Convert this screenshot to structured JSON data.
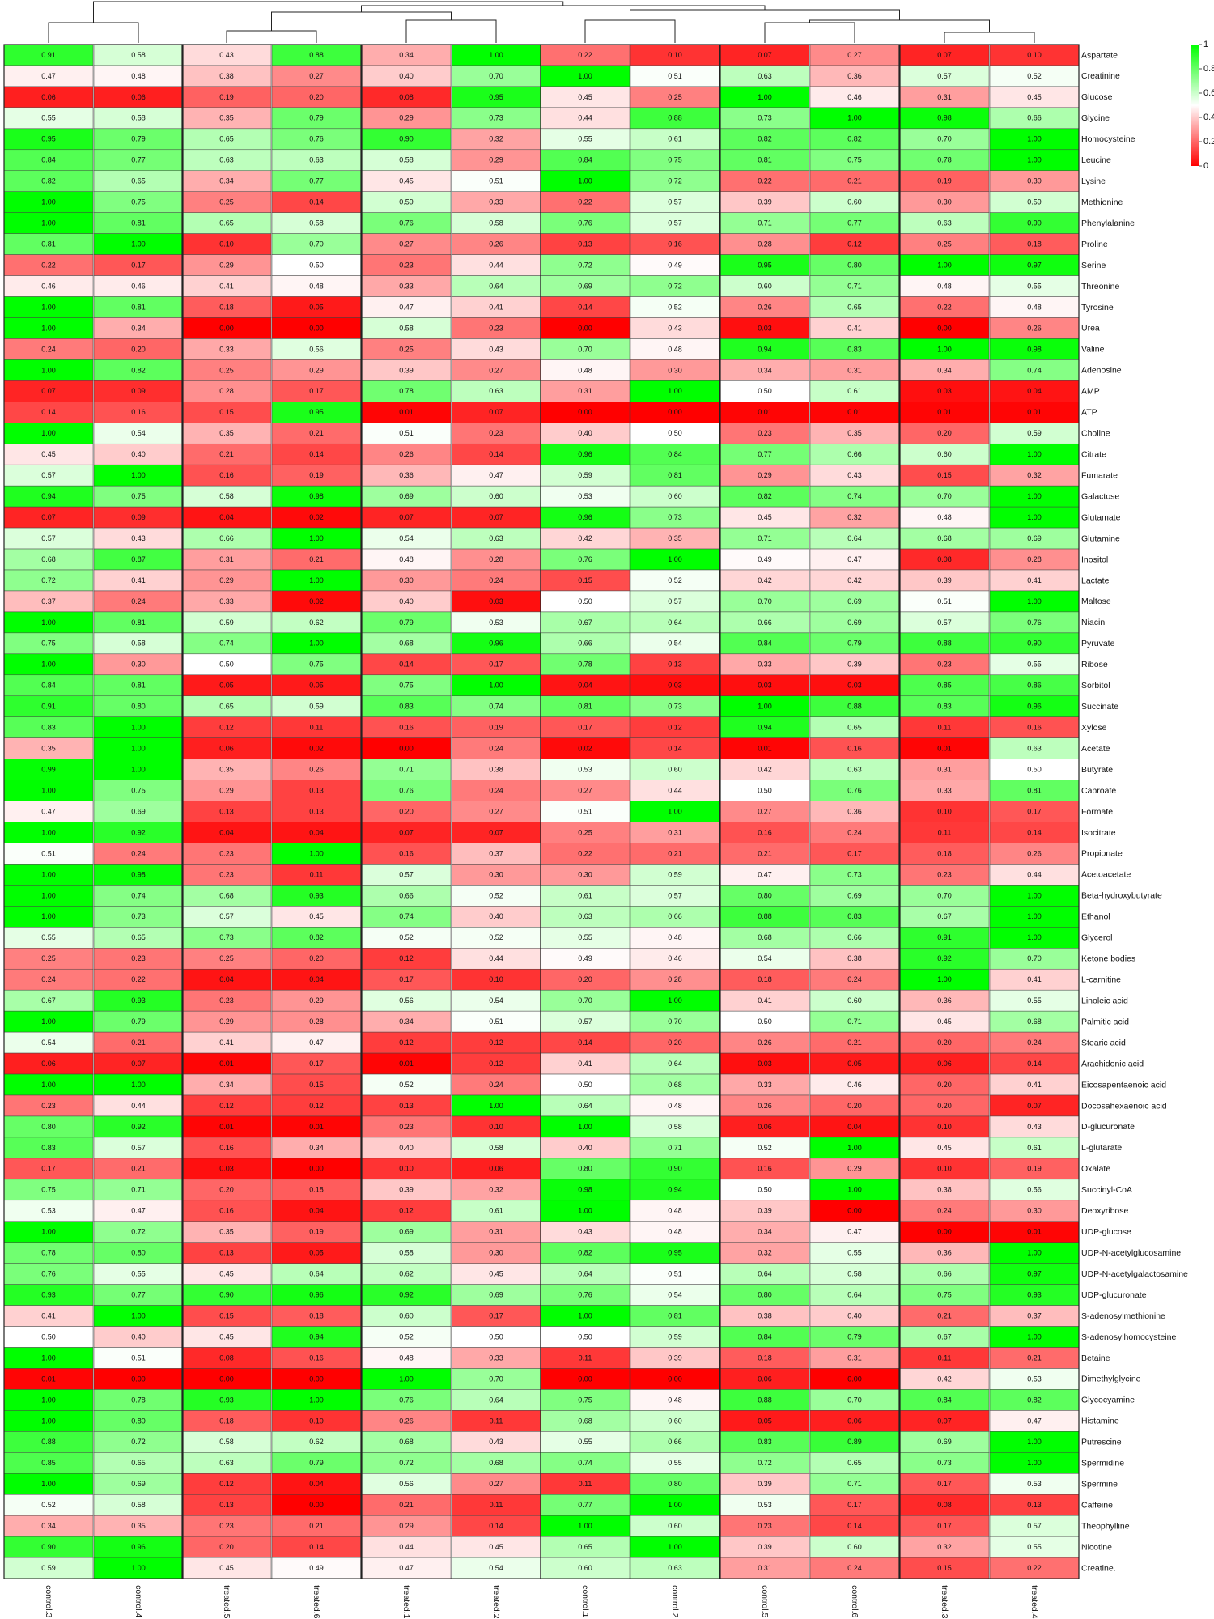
{
  "chart_data": {
    "type": "heatmap",
    "title": "",
    "columns": [
      "control.3",
      "control.4",
      "treated.5",
      "treated.6",
      "treated.1",
      "treated.2",
      "control.1",
      "control.2",
      "control.5",
      "control.6",
      "treated.3",
      "treated.4"
    ],
    "rows": [
      "Aspartate",
      "Creatinine",
      "Glucose",
      "Glycine",
      "Homocysteine",
      "Leucine",
      "Lysine",
      "Methionine",
      "Phenylalanine",
      "Proline",
      "Serine",
      "Threonine",
      "Tyrosine",
      "Urea",
      "Valine",
      "Adenosine",
      "AMP",
      "ATP",
      "Choline",
      "Citrate",
      "Fumarate",
      "Galactose",
      "Glutamate",
      "Glutamine",
      "Inositol",
      "Lactate",
      "Maltose",
      "Niacin",
      "Pyruvate",
      "Ribose",
      "Sorbitol",
      "Succinate",
      "Xylose",
      "Acetate",
      "Butyrate",
      "Caproate",
      "Formate",
      "Isocitrate",
      "Propionate",
      "Acetoacetate",
      "Beta-hydroxybutyrate",
      "Ethanol",
      "Glycerol",
      "Ketone bodies",
      "L-carnitine",
      "Linoleic acid",
      "Palmitic acid",
      "Stearic acid",
      "Arachidonic acid",
      "Eicosapentaenoic acid",
      "Docosahexaenoic acid",
      "D-glucuronate",
      "L-glutarate",
      "Oxalate",
      "Succinyl-CoA",
      "Deoxyribose",
      "UDP-glucose",
      "UDP-N-acetylglucosamine",
      "UDP-N-acetylgalactosamine",
      "UDP-glucuronate",
      "S-adenosylmethionine",
      "S-adenosylhomocysteine",
      "Betaine",
      "Dimethylglycine",
      "Glycocyamine",
      "Histamine",
      "Putrescine",
      "Spermidine",
      "Spermine",
      "Caffeine",
      "Theophylline",
      "Nicotine",
      "Creatine."
    ],
    "values": [
      [
        0.91,
        0.58,
        0.43,
        0.88,
        0.34,
        1.0,
        0.22,
        0.1,
        0.07,
        0.27,
        0.07,
        0.1
      ],
      [
        0.47,
        0.48,
        0.38,
        0.27,
        0.4,
        0.7,
        1.0,
        0.51,
        0.63,
        0.36,
        0.57,
        0.52
      ],
      [
        0.06,
        0.06,
        0.19,
        0.2,
        0.08,
        0.95,
        0.45,
        0.25,
        1.0,
        0.46,
        0.31,
        0.45
      ],
      [
        0.55,
        0.58,
        0.35,
        0.79,
        0.29,
        0.73,
        0.44,
        0.88,
        0.73,
        1.0,
        0.98,
        0.66
      ],
      [
        0.95,
        0.79,
        0.65,
        0.76,
        0.9,
        0.32,
        0.55,
        0.61,
        0.82,
        0.82,
        0.7,
        1.0
      ],
      [
        0.84,
        0.77,
        0.63,
        0.63,
        0.58,
        0.29,
        0.84,
        0.75,
        0.81,
        0.75,
        0.78,
        1.0
      ],
      [
        0.82,
        0.65,
        0.34,
        0.77,
        0.45,
        0.51,
        1.0,
        0.72,
        0.22,
        0.21,
        0.19,
        0.3
      ],
      [
        1.0,
        0.75,
        0.25,
        0.14,
        0.59,
        0.33,
        0.22,
        0.57,
        0.39,
        0.6,
        0.3,
        0.59
      ],
      [
        1.0,
        0.81,
        0.65,
        0.58,
        0.76,
        0.58,
        0.76,
        0.57,
        0.71,
        0.77,
        0.63,
        0.9
      ],
      [
        0.81,
        1.0,
        0.1,
        0.7,
        0.27,
        0.26,
        0.13,
        0.16,
        0.28,
        0.12,
        0.25,
        0.18
      ],
      [
        0.22,
        0.17,
        0.29,
        0.5,
        0.23,
        0.44,
        0.72,
        0.49,
        0.95,
        0.8,
        1.0,
        0.97
      ],
      [
        0.46,
        0.46,
        0.41,
        0.48,
        0.33,
        0.64,
        0.69,
        0.72,
        0.6,
        0.71,
        0.48,
        0.55
      ],
      [
        1.0,
        0.81,
        0.18,
        0.05,
        0.47,
        0.41,
        0.14,
        0.52,
        0.26,
        0.65,
        0.22,
        0.48
      ],
      [
        1.0,
        0.34,
        0.0,
        0.0,
        0.58,
        0.23,
        0.0,
        0.43,
        0.03,
        0.41,
        0.0,
        0.26
      ],
      [
        0.24,
        0.2,
        0.33,
        0.56,
        0.25,
        0.43,
        0.7,
        0.48,
        0.94,
        0.83,
        1.0,
        0.98
      ],
      [
        1.0,
        0.82,
        0.25,
        0.29,
        0.39,
        0.27,
        0.48,
        0.3,
        0.34,
        0.31,
        0.34,
        0.74
      ],
      [
        0.07,
        0.09,
        0.28,
        0.17,
        0.78,
        0.63,
        0.31,
        1.0,
        0.5,
        0.61,
        0.03,
        0.04
      ],
      [
        0.14,
        0.16,
        0.15,
        0.95,
        0.01,
        0.07,
        0.0,
        0.0,
        0.01,
        0.01,
        0.01,
        0.01
      ],
      [
        1.0,
        0.54,
        0.35,
        0.21,
        0.51,
        0.23,
        0.4,
        0.5,
        0.23,
        0.35,
        0.2,
        0.59
      ],
      [
        0.45,
        0.4,
        0.21,
        0.14,
        0.26,
        0.14,
        0.96,
        0.84,
        0.77,
        0.66,
        0.6,
        1.0
      ],
      [
        0.57,
        1.0,
        0.16,
        0.19,
        0.36,
        0.47,
        0.59,
        0.81,
        0.29,
        0.43,
        0.15,
        0.32
      ],
      [
        0.94,
        0.75,
        0.58,
        0.98,
        0.69,
        0.6,
        0.53,
        0.6,
        0.82,
        0.74,
        0.7,
        1.0
      ],
      [
        0.07,
        0.09,
        0.04,
        0.02,
        0.07,
        0.07,
        0.96,
        0.73,
        0.45,
        0.32,
        0.48,
        1.0
      ],
      [
        0.57,
        0.43,
        0.66,
        1.0,
        0.54,
        0.63,
        0.42,
        0.35,
        0.71,
        0.64,
        0.68,
        0.69
      ],
      [
        0.68,
        0.87,
        0.31,
        0.21,
        0.48,
        0.28,
        0.76,
        1.0,
        0.49,
        0.47,
        0.08,
        0.28
      ],
      [
        0.72,
        0.41,
        0.29,
        1.0,
        0.3,
        0.24,
        0.15,
        0.52,
        0.42,
        0.42,
        0.39,
        0.41
      ],
      [
        0.37,
        0.24,
        0.33,
        0.02,
        0.4,
        0.03,
        0.5,
        0.57,
        0.7,
        0.69,
        0.51,
        1.0
      ],
      [
        1.0,
        0.81,
        0.59,
        0.62,
        0.79,
        0.53,
        0.67,
        0.64,
        0.66,
        0.69,
        0.57,
        0.76
      ],
      [
        0.75,
        0.58,
        0.74,
        1.0,
        0.68,
        0.96,
        0.66,
        0.54,
        0.84,
        0.79,
        0.88,
        0.9
      ],
      [
        1.0,
        0.3,
        0.5,
        0.75,
        0.14,
        0.17,
        0.78,
        0.13,
        0.33,
        0.39,
        0.23,
        0.55
      ],
      [
        0.84,
        0.81,
        0.05,
        0.05,
        0.75,
        1.0,
        0.04,
        0.03,
        0.03,
        0.03,
        0.85,
        0.86
      ],
      [
        0.91,
        0.8,
        0.65,
        0.59,
        0.83,
        0.74,
        0.81,
        0.73,
        1.0,
        0.88,
        0.83,
        0.96
      ],
      [
        0.83,
        1.0,
        0.12,
        0.11,
        0.16,
        0.19,
        0.17,
        0.12,
        0.94,
        0.65,
        0.11,
        0.16
      ],
      [
        0.35,
        1.0,
        0.06,
        0.02,
        0.0,
        0.24,
        0.02,
        0.14,
        0.01,
        0.16,
        0.01,
        0.63
      ],
      [
        0.99,
        1.0,
        0.35,
        0.26,
        0.71,
        0.38,
        0.53,
        0.6,
        0.42,
        0.63,
        0.31,
        0.5
      ],
      [
        1.0,
        0.75,
        0.29,
        0.13,
        0.76,
        0.24,
        0.27,
        0.44,
        0.5,
        0.76,
        0.33,
        0.81
      ],
      [
        0.47,
        0.69,
        0.13,
        0.13,
        0.2,
        0.27,
        0.51,
        1.0,
        0.27,
        0.36,
        0.1,
        0.17
      ],
      [
        1.0,
        0.92,
        0.04,
        0.04,
        0.07,
        0.07,
        0.25,
        0.31,
        0.16,
        0.24,
        0.11,
        0.14
      ],
      [
        0.51,
        0.24,
        0.23,
        1.0,
        0.16,
        0.37,
        0.22,
        0.21,
        0.21,
        0.17,
        0.18,
        0.26
      ],
      [
        1.0,
        0.98,
        0.23,
        0.11,
        0.57,
        0.3,
        0.3,
        0.59,
        0.47,
        0.73,
        0.23,
        0.44
      ],
      [
        1.0,
        0.74,
        0.68,
        0.93,
        0.66,
        0.52,
        0.61,
        0.57,
        0.8,
        0.69,
        0.7,
        1.0
      ],
      [
        1.0,
        0.73,
        0.57,
        0.45,
        0.74,
        0.4,
        0.63,
        0.66,
        0.88,
        0.83,
        0.67,
        1.0
      ],
      [
        0.55,
        0.65,
        0.73,
        0.82,
        0.52,
        0.52,
        0.55,
        0.48,
        0.68,
        0.66,
        0.91,
        1.0
      ],
      [
        0.25,
        0.23,
        0.25,
        0.2,
        0.12,
        0.44,
        0.49,
        0.46,
        0.54,
        0.38,
        0.92,
        0.7
      ],
      [
        0.24,
        0.22,
        0.04,
        0.04,
        0.17,
        0.1,
        0.2,
        0.28,
        0.18,
        0.24,
        1.0,
        0.41
      ],
      [
        0.67,
        0.93,
        0.23,
        0.29,
        0.56,
        0.54,
        0.7,
        1.0,
        0.41,
        0.6,
        0.36,
        0.55
      ],
      [
        1.0,
        0.79,
        0.29,
        0.28,
        0.34,
        0.51,
        0.57,
        0.7,
        0.5,
        0.71,
        0.45,
        0.68
      ],
      [
        0.54,
        0.21,
        0.41,
        0.47,
        0.12,
        0.12,
        0.14,
        0.2,
        0.26,
        0.21,
        0.2,
        0.24
      ],
      [
        0.06,
        0.07,
        0.01,
        0.17,
        0.01,
        0.12,
        0.41,
        0.64,
        0.03,
        0.05,
        0.06,
        0.14
      ],
      [
        1.0,
        1.0,
        0.34,
        0.15,
        0.52,
        0.24,
        0.5,
        0.68,
        0.33,
        0.46,
        0.2,
        0.41
      ],
      [
        0.23,
        0.44,
        0.12,
        0.12,
        0.13,
        1.0,
        0.64,
        0.48,
        0.26,
        0.2,
        0.2,
        0.07
      ],
      [
        0.8,
        0.92,
        0.01,
        0.01,
        0.23,
        0.1,
        1.0,
        0.58,
        0.06,
        0.04,
        0.1,
        0.43
      ],
      [
        0.83,
        0.57,
        0.16,
        0.34,
        0.4,
        0.58,
        0.4,
        0.71,
        0.52,
        1.0,
        0.45,
        0.61
      ],
      [
        0.17,
        0.21,
        0.03,
        0.0,
        0.1,
        0.06,
        0.8,
        0.9,
        0.16,
        0.29,
        0.1,
        0.19
      ],
      [
        0.75,
        0.71,
        0.2,
        0.18,
        0.39,
        0.32,
        0.98,
        0.94,
        0.5,
        1.0,
        0.38,
        0.56
      ],
      [
        0.53,
        0.47,
        0.16,
        0.04,
        0.12,
        0.61,
        1.0,
        0.48,
        0.39,
        0.0,
        0.24,
        0.3
      ],
      [
        1.0,
        0.72,
        0.35,
        0.19,
        0.69,
        0.31,
        0.43,
        0.48,
        0.34,
        0.47,
        0.0,
        0.01
      ],
      [
        0.78,
        0.8,
        0.13,
        0.05,
        0.58,
        0.3,
        0.82,
        0.95,
        0.32,
        0.55,
        0.36,
        1.0
      ],
      [
        0.76,
        0.55,
        0.45,
        0.64,
        0.62,
        0.45,
        0.64,
        0.51,
        0.64,
        0.58,
        0.66,
        0.97
      ],
      [
        0.93,
        0.77,
        0.9,
        0.96,
        0.92,
        0.69,
        0.76,
        0.54,
        0.8,
        0.64,
        0.75,
        0.93
      ],
      [
        0.41,
        1.0,
        0.15,
        0.18,
        0.6,
        0.17,
        1.0,
        0.81,
        0.38,
        0.4,
        0.21,
        0.37
      ],
      [
        0.5,
        0.4,
        0.45,
        0.94,
        0.52,
        0.5,
        0.5,
        0.59,
        0.84,
        0.79,
        0.67,
        1.0
      ],
      [
        1.0,
        0.51,
        0.08,
        0.16,
        0.48,
        0.33,
        0.11,
        0.39,
        0.18,
        0.31,
        0.11,
        0.21
      ],
      [
        0.01,
        0.0,
        0.0,
        0.0,
        1.0,
        0.7,
        0.0,
        0.0,
        0.06,
        0.0,
        0.42,
        0.53
      ],
      [
        1.0,
        0.78,
        0.93,
        1.0,
        0.76,
        0.64,
        0.75,
        0.48,
        0.88,
        0.7,
        0.84,
        0.82
      ],
      [
        1.0,
        0.8,
        0.18,
        0.1,
        0.26,
        0.11,
        0.68,
        0.6,
        0.05,
        0.06,
        0.07,
        0.47
      ],
      [
        0.88,
        0.72,
        0.58,
        0.62,
        0.68,
        0.43,
        0.55,
        0.66,
        0.83,
        0.89,
        0.69,
        1.0
      ],
      [
        0.85,
        0.65,
        0.63,
        0.79,
        0.72,
        0.68,
        0.74,
        0.55,
        0.72,
        0.65,
        0.73,
        1.0
      ],
      [
        1.0,
        0.69,
        0.12,
        0.04,
        0.56,
        0.27,
        0.11,
        0.8,
        0.39,
        0.71,
        0.17,
        0.53
      ],
      [
        0.52,
        0.58,
        0.13,
        0.0,
        0.21,
        0.11,
        0.77,
        1.0,
        0.53,
        0.17,
        0.08,
        0.13
      ],
      [
        0.34,
        0.35,
        0.23,
        0.21,
        0.29,
        0.14,
        1.0,
        0.6,
        0.23,
        0.14,
        0.17,
        0.57
      ],
      [
        0.9,
        0.96,
        0.2,
        0.14,
        0.44,
        0.45,
        0.65,
        1.0,
        0.39,
        0.6,
        0.32,
        0.55
      ],
      [
        0.59,
        1.0,
        0.45,
        0.49,
        0.47,
        0.54,
        0.6,
        0.63,
        0.31,
        0.24,
        0.15,
        0.22
      ]
    ],
    "color_scale": {
      "low": "#ff0000",
      "mid": "#ffffff",
      "high": "#00ff00",
      "range": [
        0,
        1
      ]
    },
    "legend": {
      "ticks": [
        1,
        0.8,
        0.6,
        0.4,
        0.2,
        0
      ],
      "placement": "top-right"
    },
    "dendrogram": "column"
  }
}
